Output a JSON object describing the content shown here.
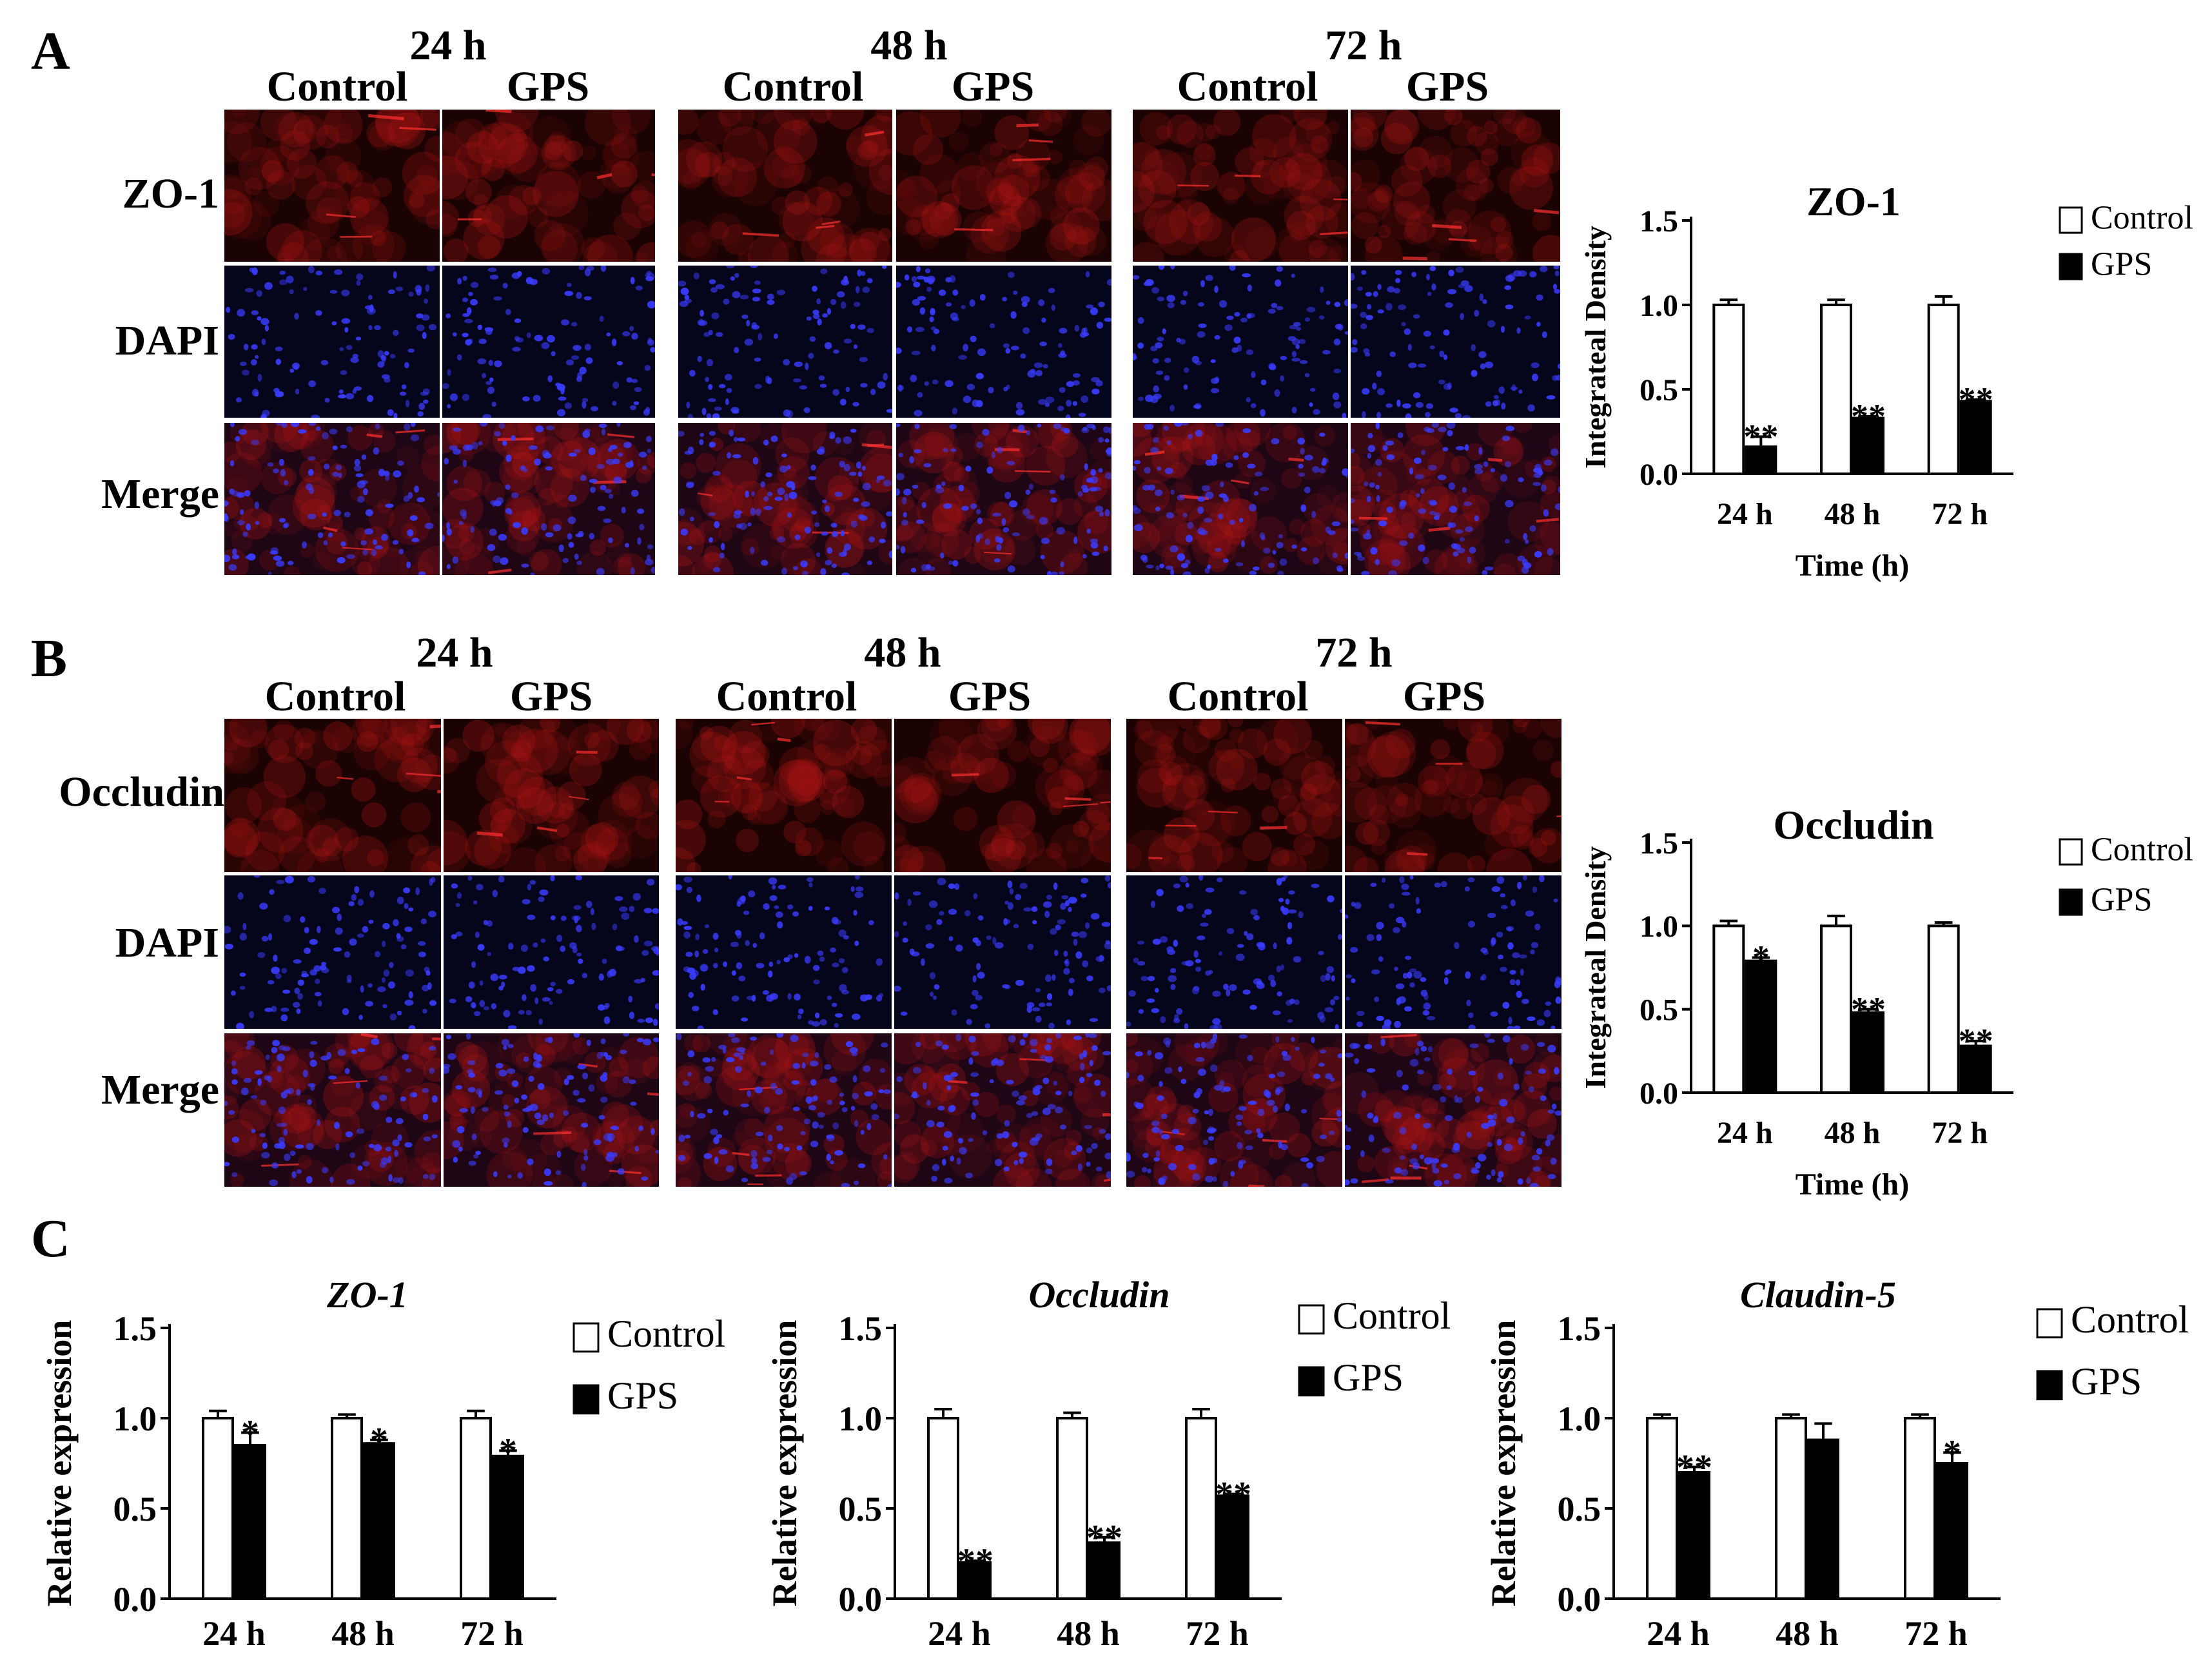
{
  "figure": {
    "panels": [
      {
        "letter": "A",
        "times": [
          "24 h",
          "48 h",
          "72 h"
        ],
        "conditions": [
          "Control",
          "GPS"
        ],
        "rows": [
          "ZO-1",
          "DAPI",
          "Merge"
        ]
      },
      {
        "letter": "B",
        "times": [
          "24 h",
          "48 h",
          "72 h"
        ],
        "conditions": [
          "Control",
          "GPS"
        ],
        "rows": [
          "Occludin",
          "DAPI",
          "Merge"
        ]
      },
      {
        "letter": "C"
      }
    ]
  },
  "chart_data": [
    {
      "id": "A-zo1-density",
      "type": "bar",
      "title": "ZO-1",
      "title_italic": false,
      "xlabel": "Time (h)",
      "ylabel": "Integrateal Density",
      "categories": [
        "24 h",
        "48 h",
        "72 h"
      ],
      "ylim": [
        0,
        1.5
      ],
      "yticks": [
        "0.0",
        "0.5",
        "1.0",
        "1.5"
      ],
      "legend": [
        "Control",
        "GPS"
      ],
      "legend_position": "top-right",
      "series": [
        {
          "name": "Control",
          "values": [
            1.0,
            1.0,
            1.0
          ],
          "errors": [
            0.03,
            0.03,
            0.05
          ]
        },
        {
          "name": "GPS",
          "values": [
            0.16,
            0.33,
            0.43
          ],
          "errors": [
            0.06,
            0.01,
            0.01
          ]
        }
      ],
      "significance": [
        "**",
        "**",
        "**"
      ]
    },
    {
      "id": "B-occludin-density",
      "type": "bar",
      "title": "Occludin",
      "title_italic": false,
      "xlabel": "Time (h)",
      "ylabel": "Integrateal Density",
      "categories": [
        "24 h",
        "48 h",
        "72 h"
      ],
      "ylim": [
        0,
        1.5
      ],
      "yticks": [
        "0.0",
        "0.5",
        "1.0",
        "1.5"
      ],
      "legend": [
        "Control",
        "GPS"
      ],
      "legend_position": "top-right",
      "series": [
        {
          "name": "Control",
          "values": [
            1.0,
            1.0,
            1.0
          ],
          "errors": [
            0.03,
            0.06,
            0.02
          ]
        },
        {
          "name": "GPS",
          "values": [
            0.79,
            0.48,
            0.28
          ],
          "errors": [
            0.02,
            0.02,
            0.03
          ]
        }
      ],
      "significance": [
        "*",
        "**",
        "**"
      ]
    },
    {
      "id": "C-zo1-expression",
      "type": "bar",
      "title": "ZO-1",
      "title_italic": true,
      "xlabel": "",
      "ylabel": "Relative expression",
      "categories": [
        "24 h",
        "48 h",
        "72 h"
      ],
      "ylim": [
        0,
        1.5
      ],
      "yticks": [
        "0.0",
        "0.5",
        "1.0",
        "1.5"
      ],
      "legend": [
        "Control",
        "GPS"
      ],
      "legend_position": "top-right",
      "series": [
        {
          "name": "Control",
          "values": [
            1.0,
            1.0,
            1.0
          ],
          "errors": [
            0.04,
            0.02,
            0.04
          ]
        },
        {
          "name": "GPS",
          "values": [
            0.85,
            0.86,
            0.79
          ],
          "errors": [
            0.07,
            0.02,
            0.03
          ]
        }
      ],
      "significance": [
        "*",
        "*",
        "*"
      ]
    },
    {
      "id": "C-occludin-expression",
      "type": "bar",
      "title": "Occludin",
      "title_italic": true,
      "xlabel": "",
      "ylabel": "Relative expression",
      "categories": [
        "24 h",
        "48 h",
        "72 h"
      ],
      "ylim": [
        0,
        1.5
      ],
      "yticks": [
        "0.0",
        "0.5",
        "1.0",
        "1.5"
      ],
      "legend": [
        "Control",
        "GPS"
      ],
      "legend_position": "top-right",
      "series": [
        {
          "name": "Control",
          "values": [
            1.0,
            1.0,
            1.0
          ],
          "errors": [
            0.05,
            0.03,
            0.05
          ]
        },
        {
          "name": "GPS",
          "values": [
            0.2,
            0.31,
            0.57
          ],
          "errors": [
            0.01,
            0.03,
            0.01
          ]
        }
      ],
      "significance": [
        "**",
        "**",
        "**"
      ]
    },
    {
      "id": "C-claudin5-expression",
      "type": "bar",
      "title": "Claudin-5",
      "title_italic": true,
      "xlabel": "",
      "ylabel": "Relative expression",
      "categories": [
        "24 h",
        "48 h",
        "72 h"
      ],
      "ylim": [
        0,
        1.5
      ],
      "yticks": [
        "0.0",
        "0.5",
        "1.0",
        "1.5"
      ],
      "legend": [
        "Control",
        "GPS"
      ],
      "legend_position": "top-right",
      "series": [
        {
          "name": "Control",
          "values": [
            1.0,
            1.0,
            1.0
          ],
          "errors": [
            0.02,
            0.02,
            0.02
          ]
        },
        {
          "name": "GPS",
          "values": [
            0.7,
            0.88,
            0.75
          ],
          "errors": [
            0.03,
            0.09,
            0.06
          ]
        }
      ],
      "significance": [
        "**",
        "",
        "*"
      ]
    }
  ]
}
